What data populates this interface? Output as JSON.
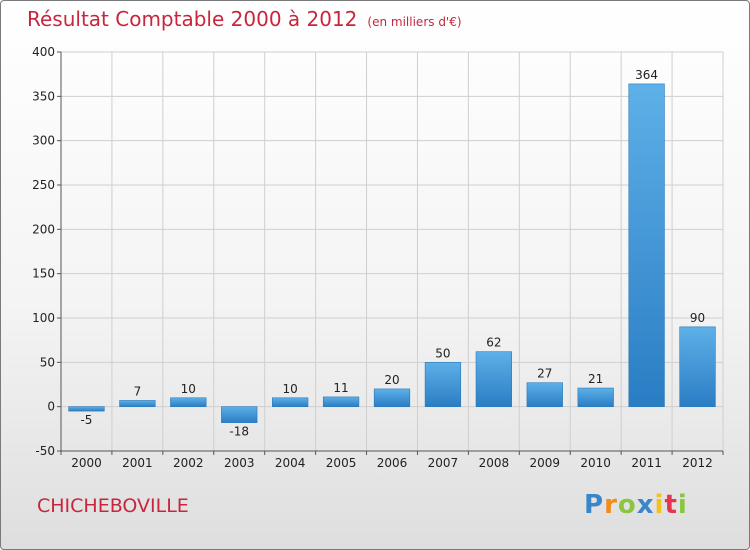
{
  "header": {
    "title": "Résultat Comptable 2000 à 2012",
    "subtitle": "(en milliers d'€)"
  },
  "footer": {
    "place": "CHICHEBOVILLE",
    "logo": "Proxiti"
  },
  "colors": {
    "title": "#c8263e",
    "bar_top": "#5eb0e8",
    "bar_bottom": "#2a7dc3"
  },
  "chart_data": {
    "type": "bar",
    "title": "Résultat Comptable 2000 à 2012",
    "subtitle": "(en milliers d'€)",
    "categories": [
      "2000",
      "2001",
      "2002",
      "2003",
      "2004",
      "2005",
      "2006",
      "2007",
      "2008",
      "2009",
      "2010",
      "2011",
      "2012"
    ],
    "values": [
      -5,
      7,
      10,
      -18,
      10,
      11,
      20,
      50,
      62,
      27,
      21,
      364,
      90
    ],
    "ylim": [
      -50,
      400
    ],
    "yticks": [
      -50,
      0,
      50,
      100,
      150,
      200,
      250,
      300,
      350,
      400
    ],
    "grid": true,
    "legend": "none"
  }
}
